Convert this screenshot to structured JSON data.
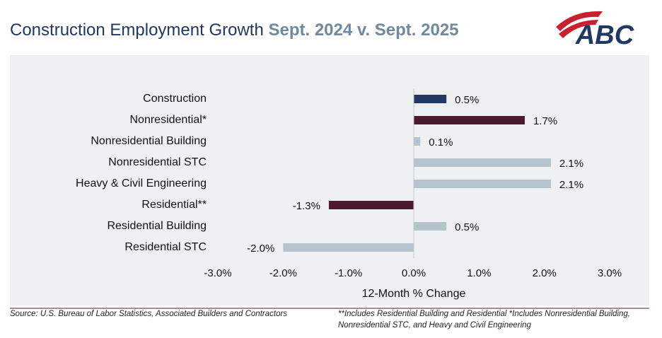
{
  "chart_data": {
    "type": "hbar",
    "title": "Construction Employment Growth",
    "subtitle": "Sept. 2024 v. Sept. 2025",
    "logo": "ABC",
    "categories": [
      "Construction",
      "Nonresidential*",
      "Nonresidential Building",
      "Nonresidential STC",
      "Heavy & Civil Engineering",
      "Residential**",
      "Residential Building",
      "Residential STC"
    ],
    "values": [
      0.5,
      1.7,
      0.1,
      2.1,
      2.1,
      -1.3,
      0.5,
      -2.0
    ],
    "value_labels": [
      "0.5%",
      "1.7%",
      "0.1%",
      "2.1%",
      "2.1%",
      "-1.3%",
      "0.5%",
      "-2.0%"
    ],
    "colors": [
      "#1f3864",
      "#4b1a30",
      "#b5c3cc",
      "#b5c3cc",
      "#b5c3cc",
      "#4b1a30",
      "#b5c3cc",
      "#b5c3cc"
    ],
    "xlim": [
      -3,
      3
    ],
    "xticks": [
      {
        "value": -3,
        "label": "-3.0%"
      },
      {
        "value": -2,
        "label": "-2.0%"
      },
      {
        "value": -1,
        "label": "-1.0%"
      },
      {
        "value": 0,
        "label": "0.0%"
      },
      {
        "value": 1,
        "label": "1.0%"
      },
      {
        "value": 2,
        "label": "2.0%"
      },
      {
        "value": 3,
        "label": "3.0%"
      }
    ],
    "xlabel": "12-Month % Change",
    "source": "Source: U.S. Bureau of Labor Statistics, Associated Builders and Contractors",
    "note": "**Includes Residential Building and Residential *Includes Nonresidential Building, Nonresidential STC, and Heavy and Civil Engineering"
  }
}
